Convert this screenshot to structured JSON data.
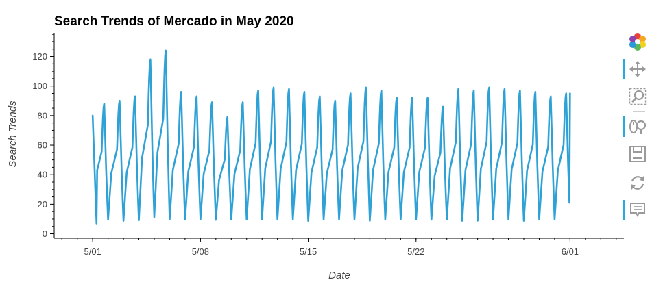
{
  "chart_data": {
    "type": "line",
    "title": "Search Trends of Mercado in May 2020",
    "xlabel": "Date",
    "ylabel": "Search Trends",
    "x_range": [
      "2020-04-28T12:00",
      "2020-06-04T12:00"
    ],
    "ylim": [
      -3,
      136
    ],
    "x_ticks": [
      {
        "label": "5/01",
        "value": "2020-05-01"
      },
      {
        "label": "5/08",
        "value": "2020-05-08"
      },
      {
        "label": "5/15",
        "value": "2020-05-15"
      },
      {
        "label": "5/22",
        "value": "2020-05-22"
      },
      {
        "label": "6/01",
        "value": "2020-06-01"
      }
    ],
    "y_ticks": [
      0,
      20,
      40,
      60,
      80,
      100,
      120
    ],
    "grid": false,
    "series": [
      {
        "color": "#2ea2d6",
        "sampling": "hourly",
        "start": "2020-05-01T00:00",
        "daily_peaks": [
          88,
          90,
          93,
          118,
          124,
          96,
          93,
          89,
          79,
          89,
          97,
          99,
          98,
          96,
          93,
          90,
          95,
          99,
          97,
          92,
          92,
          92,
          86,
          98,
          97,
          99,
          98,
          97,
          96,
          93,
          95
        ],
        "daily_troughs": [
          7,
          8,
          7,
          7,
          9,
          8,
          8,
          8,
          8,
          8,
          8,
          8,
          8,
          8,
          7,
          8,
          8,
          8,
          7,
          8,
          8,
          8,
          8,
          8,
          7,
          7,
          8,
          8,
          7,
          8,
          8
        ],
        "first_value": 80,
        "last_value": 95
      }
    ]
  },
  "toolbar": {
    "tools": [
      {
        "name": "bokeh-logo-icon",
        "active": false
      },
      {
        "name": "pan-tool-icon",
        "active": true
      },
      {
        "name": "box-zoom-tool-icon",
        "active": false
      },
      {
        "name": "wheel-zoom-tool-icon",
        "active": true
      },
      {
        "name": "save-tool-icon",
        "active": false
      },
      {
        "name": "reset-tool-icon",
        "active": false
      },
      {
        "name": "hover-tool-icon",
        "active": true
      }
    ]
  }
}
